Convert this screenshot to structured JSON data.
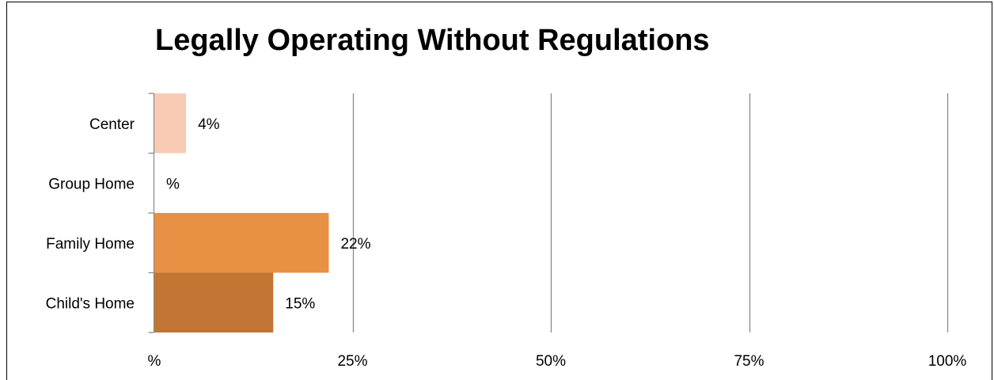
{
  "chart_data": {
    "type": "bar",
    "orientation": "horizontal",
    "title": "Legally Operating Without Regulations",
    "categories": [
      "Center",
      "Group Home",
      "Family Home",
      "Child's Home"
    ],
    "values": [
      4,
      0,
      22,
      15
    ],
    "data_labels": [
      "4%",
      "%",
      "22%",
      "15%"
    ],
    "bar_colors": [
      "#f8cbb4",
      "#ffffff",
      "#e89145",
      "#c37534"
    ],
    "xlim": [
      0,
      100
    ],
    "x_ticks": [
      0,
      25,
      50,
      75,
      100
    ],
    "x_tick_labels": [
      "%",
      "25%",
      "50%",
      "75%",
      "100%"
    ],
    "xlabel": "",
    "ylabel": "",
    "grid": true,
    "gridline_color": "#8c8c8c",
    "axis_color": "#8c8c8c"
  }
}
